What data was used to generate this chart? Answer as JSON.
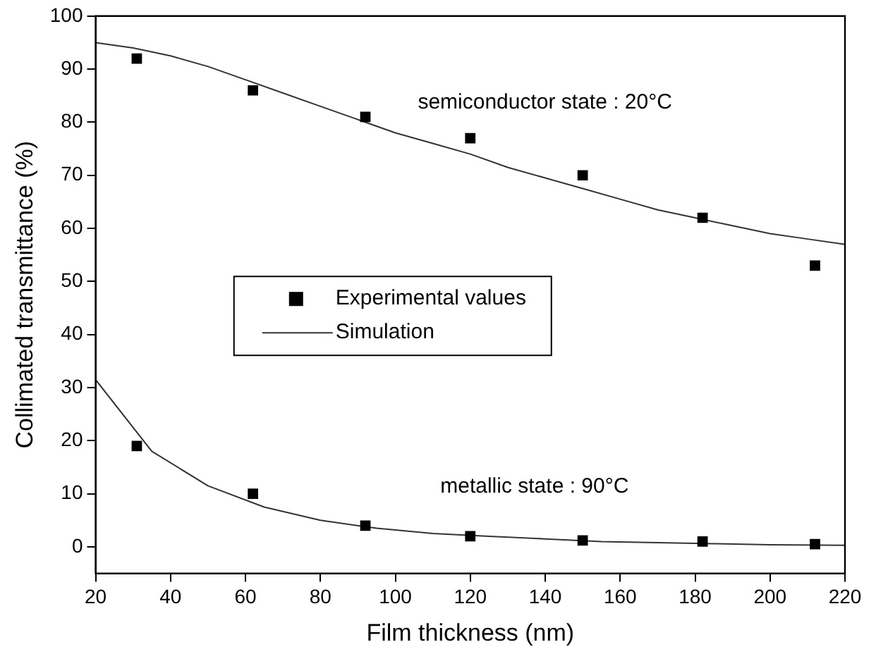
{
  "chart_data": {
    "type": "scatter",
    "xlabel": "Film thickness (nm)",
    "ylabel": "Collimated transmittance (%)",
    "xlim": [
      20,
      220
    ],
    "xticks": [
      20,
      40,
      60,
      80,
      100,
      120,
      140,
      160,
      180,
      200,
      220
    ],
    "ylim": [
      -5,
      100
    ],
    "yticks": [
      0,
      10,
      20,
      30,
      40,
      50,
      60,
      70,
      80,
      90,
      100
    ],
    "grid": false,
    "legend": "center",
    "series": [
      {
        "name": "Experimental values",
        "marker": "square",
        "color": "#000000",
        "x": [
          31,
          62,
          92,
          120,
          150,
          182,
          212
        ],
        "values": [
          92,
          86,
          81,
          77,
          70,
          62,
          53
        ]
      },
      {
        "marker": "square",
        "color": "#000000",
        "x": [
          31,
          62,
          92,
          120,
          150,
          182,
          212
        ],
        "values": [
          19,
          10,
          4,
          2,
          1.2,
          1,
          0.5
        ]
      },
      {
        "name": "Simulation",
        "type": "line",
        "marker": "none",
        "color": "#333333",
        "x": [
          20,
          30,
          40,
          50,
          60,
          70,
          80,
          90,
          100,
          110,
          120,
          130,
          140,
          150,
          160,
          170,
          180,
          190,
          200,
          210,
          220
        ],
        "values": [
          95,
          94,
          92.5,
          90.5,
          88,
          85.5,
          83,
          80.5,
          78,
          76,
          74,
          71.5,
          69.5,
          67.5,
          65.5,
          63.5,
          62,
          60.5,
          59,
          58,
          57
        ]
      },
      {
        "type": "line",
        "marker": "none",
        "color": "#333333",
        "x": [
          20,
          35,
          50,
          65,
          80,
          95,
          110,
          125,
          140,
          155,
          170,
          185,
          200,
          220
        ],
        "values": [
          31.5,
          18,
          11.5,
          7.5,
          5,
          3.5,
          2.5,
          2,
          1.5,
          1,
          0.8,
          0.6,
          0.4,
          0.3
        ]
      }
    ],
    "annotations": [
      "semiconductor state : 20°C",
      "metallic state : 90°C"
    ]
  }
}
